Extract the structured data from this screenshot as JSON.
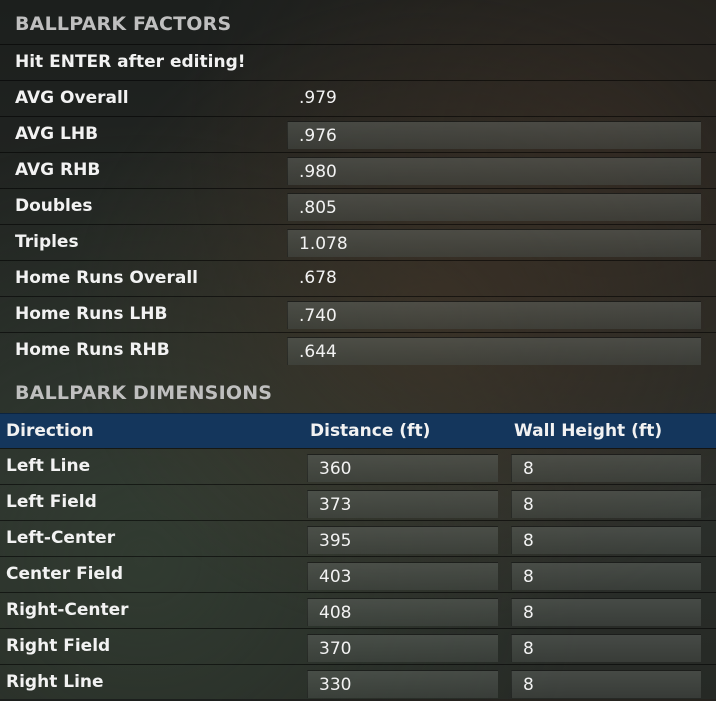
{
  "factors": {
    "title": "BALLPARK FACTORS",
    "note": "Hit ENTER after editing!",
    "rows": [
      {
        "label": "AVG Overall",
        "value": ".979",
        "editable": false
      },
      {
        "label": "AVG LHB",
        "value": ".976",
        "editable": true
      },
      {
        "label": "AVG RHB",
        "value": ".980",
        "editable": true
      },
      {
        "label": "Doubles",
        "value": ".805",
        "editable": true
      },
      {
        "label": "Triples",
        "value": "1.078",
        "editable": true
      },
      {
        "label": "Home Runs Overall",
        "value": ".678",
        "editable": false
      },
      {
        "label": "Home Runs LHB",
        "value": ".740",
        "editable": true
      },
      {
        "label": "Home Runs RHB",
        "value": ".644",
        "editable": true
      }
    ]
  },
  "dimensions": {
    "title": "BALLPARK DIMENSIONS",
    "header": {
      "direction": "Direction",
      "distance": "Distance (ft)",
      "wall_height": "Wall Height (ft)"
    },
    "rows": [
      {
        "direction": "Left Line",
        "distance": "360",
        "wall_height": "8"
      },
      {
        "direction": "Left Field",
        "distance": "373",
        "wall_height": "8"
      },
      {
        "direction": "Left-Center",
        "distance": "395",
        "wall_height": "8"
      },
      {
        "direction": "Center Field",
        "distance": "403",
        "wall_height": "8"
      },
      {
        "direction": "Right-Center",
        "distance": "408",
        "wall_height": "8"
      },
      {
        "direction": "Right Field",
        "distance": "370",
        "wall_height": "8"
      },
      {
        "direction": "Right Line",
        "distance": "330",
        "wall_height": "8"
      }
    ]
  }
}
